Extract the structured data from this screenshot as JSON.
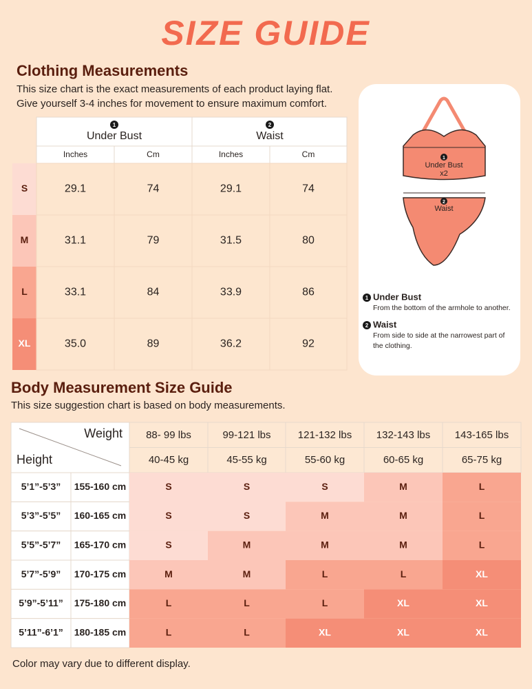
{
  "title": "SIZE GUIDE",
  "size_colors": {
    "S": {
      "fill": "#fddcd3",
      "text": "#5a1e0e"
    },
    "M": {
      "fill": "#fcc6b8",
      "text": "#5a1e0e"
    },
    "L": {
      "fill": "#f9a690",
      "text": "#5a1e0e"
    },
    "XL": {
      "fill": "#f58e77",
      "text": "#ffffff"
    }
  },
  "clothing": {
    "heading": "Clothing Measurements",
    "description": [
      "This size chart is the exact measurements of each product laying flat.",
      "Give yourself 3-4 inches for movement to ensure maximum comfort."
    ],
    "columns": [
      {
        "number": "1",
        "label": "Under Bust"
      },
      {
        "number": "2",
        "label": "Waist"
      }
    ],
    "units": [
      "Inches",
      "Cm",
      "Inches",
      "Cm"
    ],
    "rows": [
      {
        "size": "S",
        "values": [
          "29.1",
          "74",
          "29.1",
          "74"
        ]
      },
      {
        "size": "M",
        "values": [
          "31.1",
          "79",
          "31.5",
          "80"
        ]
      },
      {
        "size": "L",
        "values": [
          "33.1",
          "84",
          "33.9",
          "86"
        ]
      },
      {
        "size": "XL",
        "values": [
          "35.0",
          "89",
          "36.2",
          "92"
        ]
      }
    ]
  },
  "diagram": {
    "top": {
      "number": "1",
      "label": "Under Bust",
      "note": "x2"
    },
    "bottom": {
      "number": "2",
      "label": "Waist"
    },
    "legend": [
      {
        "number": "1",
        "title": "Under Bust",
        "lines": [
          "From the bottom of the armhole to another."
        ]
      },
      {
        "number": "2",
        "title": "Waist",
        "lines": [
          "From side to side at the narrowest part of",
          "the clothing."
        ]
      }
    ]
  },
  "body": {
    "heading": "Body Measurement Size Guide",
    "description": "This size suggestion chart is based on body measurements.",
    "weight_label": "Weight",
    "height_label": "Height",
    "weights": [
      {
        "lbs": "88- 99 lbs",
        "kg": "40-45 kg"
      },
      {
        "lbs": "99-121 lbs",
        "kg": "45-55 kg"
      },
      {
        "lbs": "121-132 lbs",
        "kg": "55-60 kg"
      },
      {
        "lbs": "132-143 lbs",
        "kg": "60-65 kg"
      },
      {
        "lbs": "143-165 lbs",
        "kg": "65-75 kg"
      }
    ],
    "rows": [
      {
        "ft": "5’1”-5’3”",
        "cm": "155-160 cm",
        "sizes": [
          "S",
          "S",
          "S",
          "M",
          "L"
        ]
      },
      {
        "ft": "5’3”-5’5”",
        "cm": "160-165 cm",
        "sizes": [
          "S",
          "S",
          "M",
          "M",
          "L"
        ]
      },
      {
        "ft": "5’5”-5’7”",
        "cm": "165-170 cm",
        "sizes": [
          "S",
          "M",
          "M",
          "M",
          "L"
        ]
      },
      {
        "ft": "5’7”-5’9”",
        "cm": "170-175 cm",
        "sizes": [
          "M",
          "M",
          "L",
          "L",
          "XL"
        ]
      },
      {
        "ft": "5’9”-5’11”",
        "cm": "175-180 cm",
        "sizes": [
          "L",
          "L",
          "L",
          "XL",
          "XL"
        ]
      },
      {
        "ft": "5’11”-6’1”",
        "cm": "180-185 cm",
        "sizes": [
          "L",
          "L",
          "XL",
          "XL",
          "XL"
        ]
      }
    ]
  },
  "footnote": "Color may vary due to different display."
}
